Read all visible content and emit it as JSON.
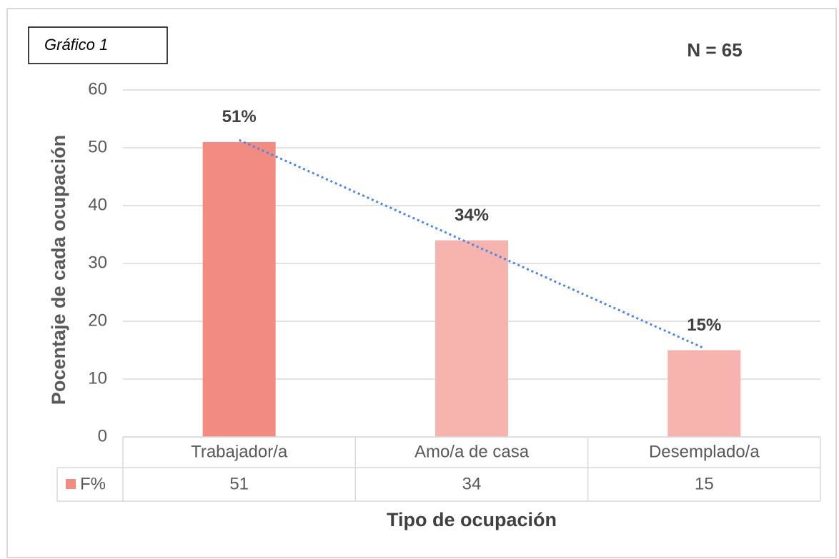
{
  "chart_data": {
    "type": "bar",
    "label": "Gráfico 1",
    "annotation": "N = 65",
    "ylabel": "Pocentaje de cada ocupación",
    "xlabel": "Tipo de ocupación",
    "categories": [
      "Trabajador/a",
      "Amo/a de casa",
      "Desemplado/a"
    ],
    "series": [
      {
        "name": "F%",
        "color": "#f28b82",
        "point_colors": [
          "#f28b82",
          "#f7b3ad",
          "#f7b3ad"
        ],
        "values": [
          51,
          34,
          15
        ],
        "value_labels": [
          "51%",
          "34%",
          "15%"
        ]
      }
    ],
    "ylim": [
      0,
      60
    ],
    "yticks": [
      0,
      10,
      20,
      30,
      40,
      50,
      60
    ],
    "grid": true,
    "data_table": true,
    "trendline": {
      "type": "linear",
      "color": "#4a86e8",
      "style": "dotted"
    }
  }
}
